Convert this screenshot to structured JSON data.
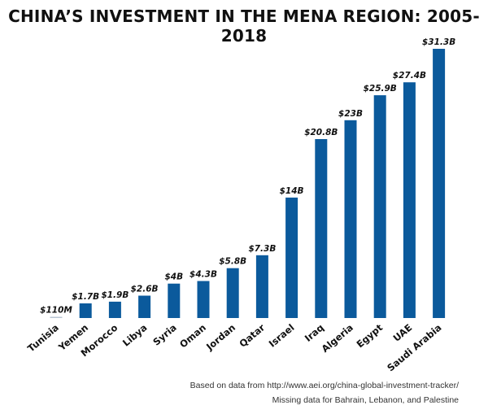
{
  "chart_data": {
    "type": "bar",
    "title": "CHINA’S INVESTMENT IN THE MENA REGION: 2005-2018",
    "categories": [
      "Tunisia",
      "Yemen",
      "Morocco",
      "Libya",
      "Syria",
      "Oman",
      "Jordan",
      "Qatar",
      "Israel",
      "Iraq",
      "Algeria",
      "Egypt",
      "UAE",
      "Saudi Arabia"
    ],
    "values": [
      0.11,
      1.7,
      1.9,
      2.6,
      4,
      4.3,
      5.8,
      7.3,
      14,
      20.8,
      23,
      25.9,
      27.4,
      31.3
    ],
    "value_labels": [
      "$110M",
      "$1.7B",
      "$1.9B",
      "$2.6B",
      "$4B",
      "$4.3B",
      "$5.8B",
      "$7.3B",
      "$14B",
      "$20.8B",
      "$23B",
      "$25.9B",
      "$27.4B",
      "$31.3B"
    ],
    "unit": "billion USD",
    "ylim": [
      0,
      31.3
    ],
    "grid": false,
    "legend": "none",
    "bar_color": "#0b5a9c",
    "xlabel": "",
    "ylabel": ""
  },
  "footnotes": {
    "source": "Based on data from http://www.aei.org/china-global-investment-tracker/",
    "missing": "Missing data for Bahrain, Lebanon, and Palestine"
  }
}
